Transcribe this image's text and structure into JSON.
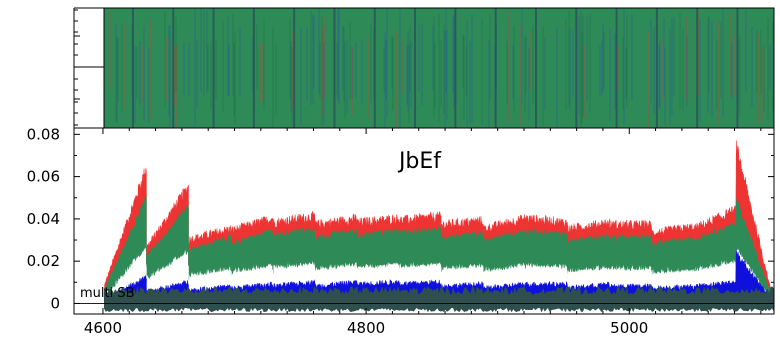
{
  "chart_data": [
    {
      "type": "line",
      "panel": "top",
      "title": "",
      "xlabel": "",
      "ylabel": "",
      "xlim": [
        4578,
        5110
      ],
      "grid": false,
      "note": "Dense overlapping noise band of all series filling the panel; a darker blue-green base sits under the green band.",
      "series_colors": {
        "band": "#2e8b57",
        "under": "#1f3fbf",
        "accent": "#e03030"
      }
    },
    {
      "type": "line",
      "panel": "bottom",
      "title": "JbEf",
      "xlabel": "",
      "ylabel": "",
      "xlim": [
        4578,
        5110
      ],
      "ylim": [
        -0.005,
        0.083
      ],
      "xticks": [
        4600,
        4800,
        5000
      ],
      "xtick_labels": [
        "4600",
        "4800",
        "5000"
      ],
      "yticks": [
        0,
        0.02,
        0.04,
        0.06,
        0.08
      ],
      "ytick_labels": [
        "0",
        "0.02",
        "0.04",
        "0.06",
        "0.08"
      ],
      "grid": false,
      "annotation": "multi SB",
      "x_start": 4601,
      "segments": [
        {
          "x0": 4601,
          "x1": 4633,
          "red": [
            0.008,
            0.064
          ],
          "green": [
            0.006,
            0.05
          ],
          "white": [
            0.004,
            0.018
          ],
          "blue": [
            0.002,
            0.012
          ]
        },
        {
          "x0": 4633,
          "x1": 4665,
          "red": [
            0.026,
            0.055
          ],
          "green": [
            0.022,
            0.046
          ],
          "white": [
            0.01,
            0.017
          ],
          "blue": [
            0.005,
            0.01
          ]
        },
        {
          "x0": 4665,
          "x1": 4697,
          "red": [
            0.03,
            0.035
          ],
          "green": [
            0.025,
            0.031
          ],
          "white": [
            0.011,
            0.015
          ],
          "blue": [
            0.006,
            0.008
          ]
        },
        {
          "x0": 4697,
          "x1": 4729,
          "red": [
            0.034,
            0.04
          ],
          "green": [
            0.028,
            0.034
          ],
          "white": [
            0.013,
            0.016
          ],
          "blue": [
            0.007,
            0.009
          ]
        },
        {
          "x0": 4729,
          "x1": 4761,
          "red": [
            0.038,
            0.041
          ],
          "green": [
            0.032,
            0.035
          ],
          "white": [
            0.015,
            0.018
          ],
          "blue": [
            0.008,
            0.01
          ]
        },
        {
          "x0": 4761,
          "x1": 4793,
          "red": [
            0.037,
            0.04
          ],
          "green": [
            0.031,
            0.034
          ],
          "white": [
            0.015,
            0.018
          ],
          "blue": [
            0.008,
            0.01
          ]
        },
        {
          "x0": 4793,
          "x1": 4825,
          "red": [
            0.038,
            0.04
          ],
          "green": [
            0.032,
            0.034
          ],
          "white": [
            0.016,
            0.018
          ],
          "blue": [
            0.009,
            0.01
          ]
        },
        {
          "x0": 4825,
          "x1": 4857,
          "red": [
            0.039,
            0.041
          ],
          "green": [
            0.033,
            0.035
          ],
          "white": [
            0.016,
            0.018
          ],
          "blue": [
            0.009,
            0.01
          ]
        },
        {
          "x0": 4857,
          "x1": 4889,
          "red": [
            0.037,
            0.039
          ],
          "green": [
            0.031,
            0.033
          ],
          "white": [
            0.015,
            0.017
          ],
          "blue": [
            0.008,
            0.009
          ]
        },
        {
          "x0": 4889,
          "x1": 4921,
          "red": [
            0.035,
            0.04
          ],
          "green": [
            0.029,
            0.034
          ],
          "white": [
            0.014,
            0.017
          ],
          "blue": [
            0.007,
            0.009
          ]
        },
        {
          "x0": 4921,
          "x1": 4953,
          "red": [
            0.04,
            0.038
          ],
          "green": [
            0.034,
            0.032
          ],
          "white": [
            0.017,
            0.016
          ],
          "blue": [
            0.009,
            0.009
          ]
        },
        {
          "x0": 4953,
          "x1": 4985,
          "red": [
            0.035,
            0.038
          ],
          "green": [
            0.029,
            0.032
          ],
          "white": [
            0.014,
            0.016
          ],
          "blue": [
            0.007,
            0.009
          ]
        },
        {
          "x0": 4985,
          "x1": 5017,
          "red": [
            0.037,
            0.037
          ],
          "green": [
            0.031,
            0.031
          ],
          "white": [
            0.015,
            0.015
          ],
          "blue": [
            0.008,
            0.008
          ]
        },
        {
          "x0": 5017,
          "x1": 5049,
          "red": [
            0.033,
            0.036
          ],
          "green": [
            0.028,
            0.03
          ],
          "white": [
            0.013,
            0.015
          ],
          "blue": [
            0.007,
            0.008
          ]
        },
        {
          "x0": 5049,
          "x1": 5081,
          "red": [
            0.035,
            0.044
          ],
          "green": [
            0.03,
            0.037
          ],
          "white": [
            0.014,
            0.018
          ],
          "blue": [
            0.008,
            0.01
          ]
        },
        {
          "x0": 5081,
          "x1": 5110,
          "red": [
            0.075,
            0.0
          ],
          "green": [
            0.05,
            0.0
          ],
          "white": [
            0.02,
            0.0
          ],
          "blue": [
            0.024,
            0.0
          ]
        }
      ],
      "colors": {
        "red": "#ee3333",
        "green": "#2e8b57",
        "white": "#ffffff",
        "blue": "#1010dd",
        "dark": "#2f4f4f"
      }
    }
  ]
}
